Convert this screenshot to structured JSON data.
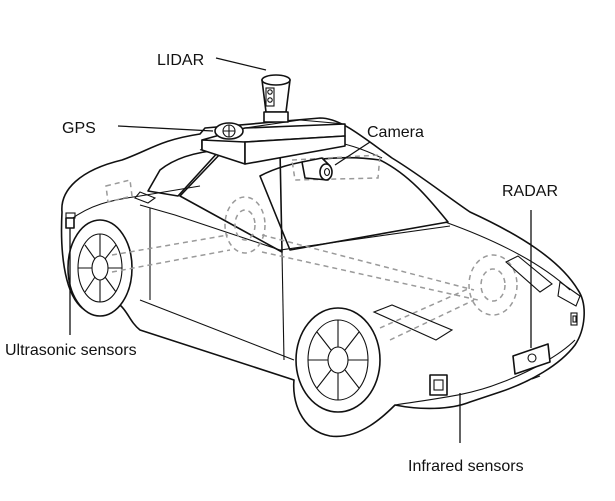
{
  "labels": {
    "lidar": "LIDAR",
    "gps": "GPS",
    "camera": "Camera",
    "radar": "RADAR",
    "ultrasonic": "Ultrasonic sensors",
    "infrared": "Infrared sensors"
  }
}
